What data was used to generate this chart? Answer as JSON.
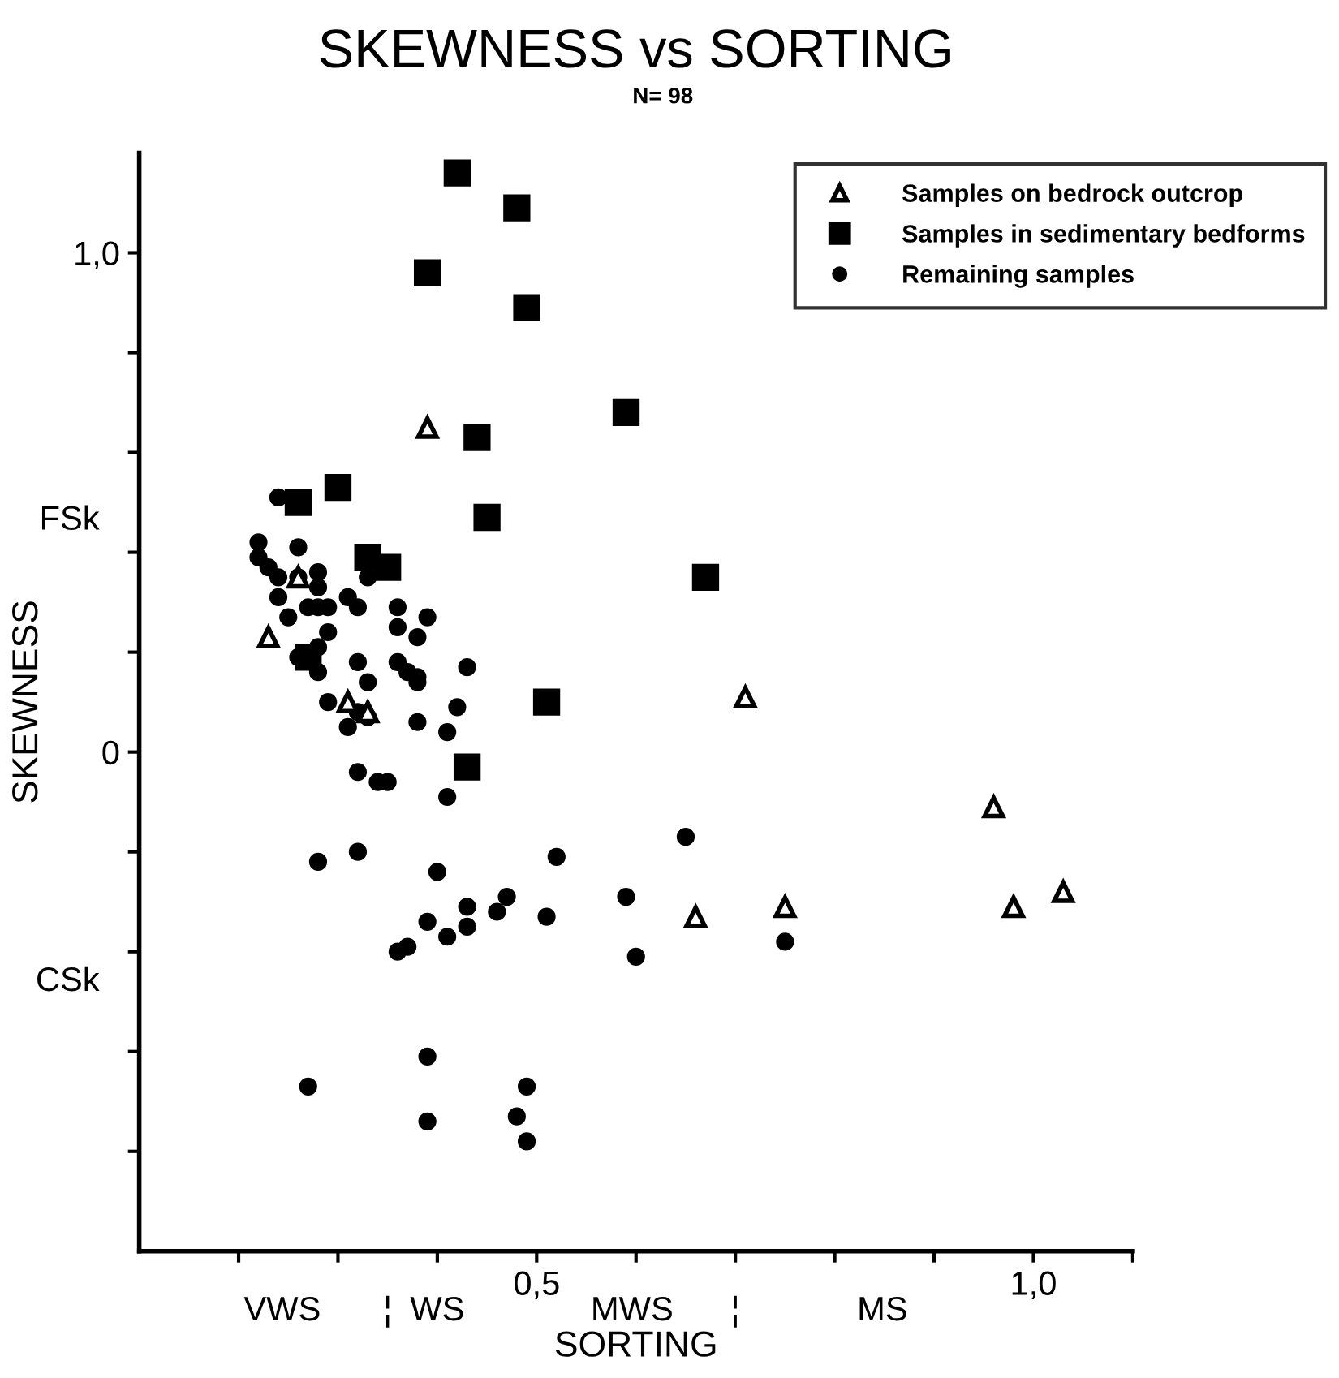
{
  "chart_data": {
    "type": "scatter",
    "title": "SKEWNESS vs SORTING",
    "subtitle": "N= 98",
    "xlabel": "SORTING",
    "ylabel": "SKEWNESS",
    "xlim": [
      0.1,
      1.1
    ],
    "xticks": [
      {
        "value": 0.2,
        "label": null
      },
      {
        "value": 0.3,
        "label": null
      },
      {
        "value": 0.4,
        "label": null
      },
      {
        "value": 0.5,
        "label": "0,5"
      },
      {
        "value": 0.6,
        "label": null
      },
      {
        "value": 0.7,
        "label": null
      },
      {
        "value": 0.8,
        "label": null
      },
      {
        "value": 0.9,
        "label": null
      },
      {
        "value": 1.0,
        "label": "1,0"
      },
      {
        "value": 1.1,
        "label": null
      }
    ],
    "ylim": [
      -1.0,
      1.2
    ],
    "yticks": [
      {
        "value": -0.8,
        "label": null
      },
      {
        "value": -0.6,
        "label": null
      },
      {
        "value": -0.4,
        "label": null
      },
      {
        "value": -0.2,
        "label": null
      },
      0,
      {
        "value": 0.2,
        "label": null
      },
      {
        "value": 0.4,
        "label": null
      },
      {
        "value": 0.6,
        "label": null
      },
      {
        "value": 0.8,
        "label": null
      },
      {
        "value": 1.0,
        "label": "1,0"
      }
    ],
    "grid": false,
    "legend": "top right",
    "annotations": [
      "VWS",
      "¦",
      "WS",
      "MWS",
      "¦",
      "MS",
      "FSk",
      "CSk"
    ],
    "series": [
      {
        "name": "Samples on bedrock outcrop",
        "color": "#000000",
        "marker": "triangle",
        "x": [
          0.39,
          0.23,
          0.31,
          0.33,
          0.26,
          0.71,
          0.96,
          0.66,
          0.75,
          0.98,
          1.03
        ],
        "values": [
          0.65,
          0.23,
          0.1,
          0.08,
          0.35,
          0.11,
          -0.11,
          -0.33,
          -0.31,
          -0.31,
          -0.28
        ]
      },
      {
        "name": "Samples in sedimentary bedforms",
        "color": "#000000",
        "marker": "square",
        "x": [
          0.42,
          0.48,
          0.39,
          0.49,
          0.59,
          0.44,
          0.26,
          0.3,
          0.45,
          0.33,
          0.35,
          0.67,
          0.27,
          0.51,
          0.43
        ],
        "values": [
          1.16,
          1.09,
          0.96,
          0.89,
          0.68,
          0.63,
          0.5,
          0.53,
          0.47,
          0.39,
          0.37,
          0.35,
          0.19,
          0.1,
          -0.03
        ]
      },
      {
        "name": "Remaining samples",
        "color": "#000000",
        "marker": "circle",
        "x": [
          0.24,
          0.22,
          0.26,
          0.22,
          0.23,
          0.24,
          0.28,
          0.26,
          0.24,
          0.28,
          0.27,
          0.28,
          0.29,
          0.25,
          0.31,
          0.32,
          0.33,
          0.36,
          0.39,
          0.36,
          0.29,
          0.38,
          0.28,
          0.26,
          0.28,
          0.32,
          0.36,
          0.37,
          0.38,
          0.38,
          0.43,
          0.33,
          0.29,
          0.32,
          0.33,
          0.31,
          0.38,
          0.42,
          0.41,
          0.32,
          0.34,
          0.35,
          0.41,
          0.28,
          0.32,
          0.4,
          0.52,
          0.65,
          0.47,
          0.43,
          0.59,
          0.39,
          0.43,
          0.46,
          0.51,
          0.41,
          0.37,
          0.36,
          0.6,
          0.75,
          0.39,
          0.27,
          0.49,
          0.39,
          0.48,
          0.49
        ],
        "values": [
          0.51,
          0.42,
          0.41,
          0.39,
          0.37,
          0.35,
          0.36,
          0.35,
          0.31,
          0.33,
          0.29,
          0.29,
          0.29,
          0.27,
          0.31,
          0.29,
          0.35,
          0.29,
          0.27,
          0.25,
          0.24,
          0.23,
          0.21,
          0.19,
          0.16,
          0.18,
          0.18,
          0.16,
          0.15,
          0.14,
          0.17,
          0.14,
          0.1,
          0.08,
          0.07,
          0.05,
          0.06,
          0.09,
          0.04,
          -0.04,
          -0.06,
          -0.06,
          -0.09,
          -0.22,
          -0.2,
          -0.24,
          -0.21,
          -0.17,
          -0.29,
          -0.31,
          -0.29,
          -0.34,
          -0.35,
          -0.32,
          -0.33,
          -0.37,
          -0.39,
          -0.4,
          -0.41,
          -0.38,
          -0.61,
          -0.67,
          -0.67,
          -0.74,
          -0.73,
          -0.78
        ]
      }
    ]
  }
}
